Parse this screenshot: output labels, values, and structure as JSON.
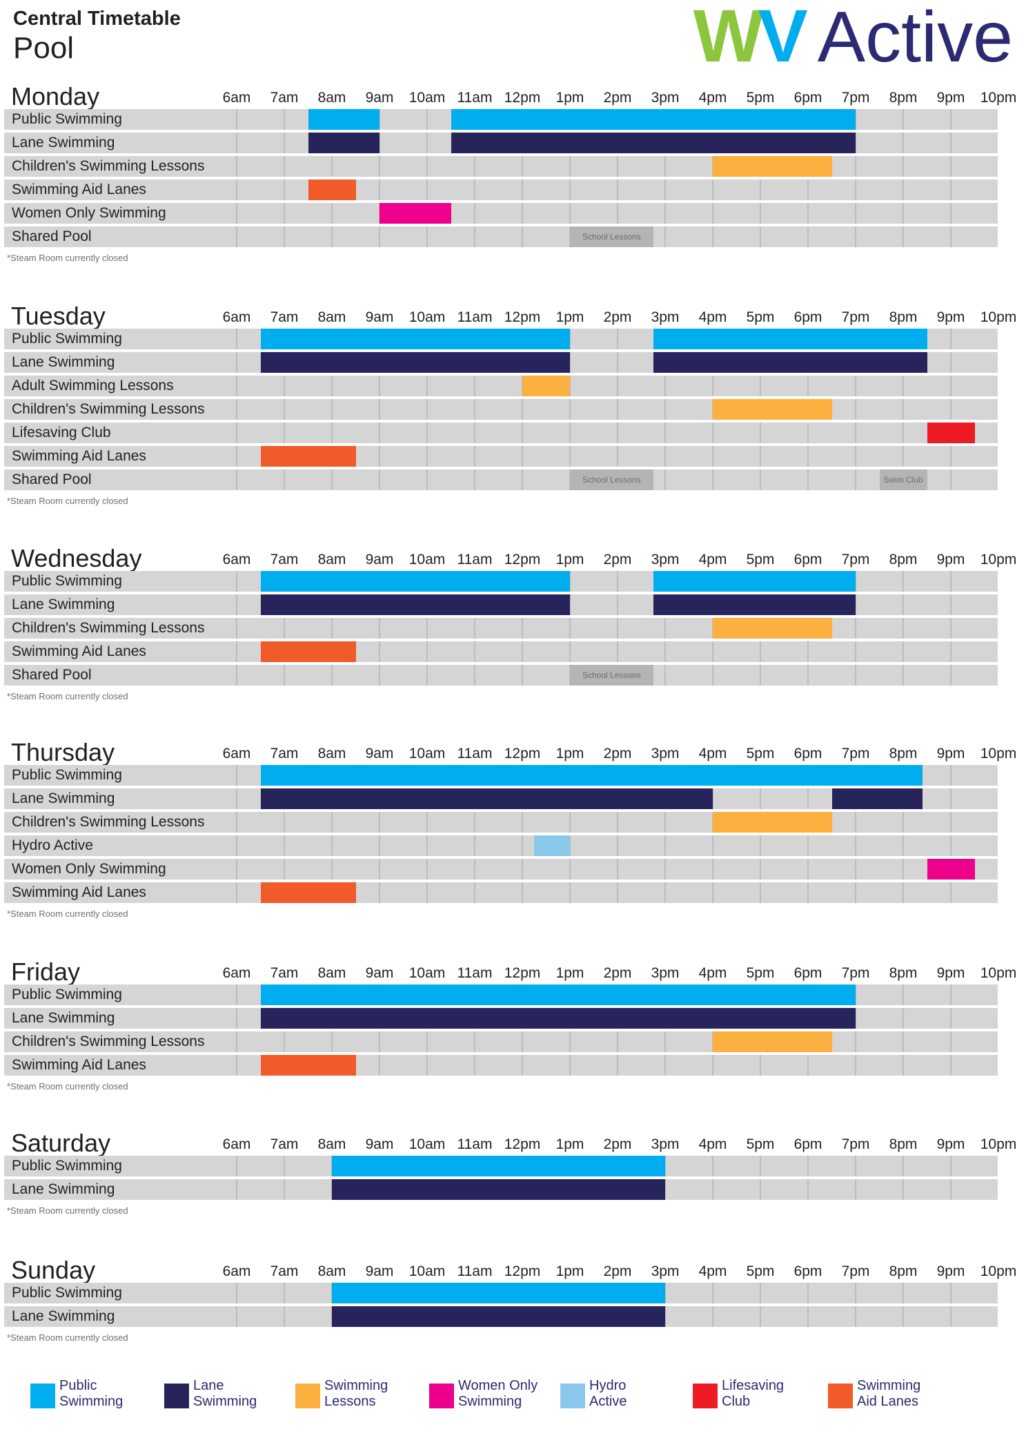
{
  "header": {
    "title": "Central Timetable",
    "subtitle": "Pool"
  },
  "logo": {
    "part_w": "W",
    "part_v": "V",
    "part_active": "Active"
  },
  "hours": [
    "6am",
    "7am",
    "8am",
    "9am",
    "10am",
    "11am",
    "12pm",
    "1pm",
    "2pm",
    "3pm",
    "4pm",
    "5pm",
    "6pm",
    "7pm",
    "8pm",
    "9pm",
    "10pm"
  ],
  "footnote": "*Steam Room currently closed",
  "colors": {
    "public": "#00aeef",
    "lane": "#27245c",
    "lessons": "#fbb040",
    "women": "#ec008c",
    "hydro": "#8ac9ec",
    "lifesaving": "#ed1c24",
    "aid": "#f15a29"
  },
  "days": [
    {
      "name": "Monday",
      "rows": [
        {
          "label": "Public Swimming",
          "bars": [
            {
              "start": 7.5,
              "end": 9,
              "color": "public"
            },
            {
              "start": 10.5,
              "end": 19,
              "color": "public"
            }
          ]
        },
        {
          "label": "Lane Swimming",
          "bars": [
            {
              "start": 7.5,
              "end": 9,
              "color": "lane"
            },
            {
              "start": 10.5,
              "end": 19,
              "color": "lane"
            }
          ]
        },
        {
          "label": "Children's Swimming Lessons",
          "bars": [
            {
              "start": 16,
              "end": 18.5,
              "color": "lessons"
            }
          ]
        },
        {
          "label": "Swimming Aid Lanes",
          "bars": [
            {
              "start": 7.5,
              "end": 8.5,
              "color": "aid"
            }
          ]
        },
        {
          "label": "Women Only Swimming",
          "bars": [
            {
              "start": 9,
              "end": 10.5,
              "color": "women"
            }
          ]
        },
        {
          "label": "Shared Pool",
          "bars": [
            {
              "start": 13,
              "end": 14.75,
              "color": "shared",
              "text": "School Lessons"
            }
          ]
        }
      ]
    },
    {
      "name": "Tuesday",
      "rows": [
        {
          "label": "Public Swimming",
          "bars": [
            {
              "start": 6.5,
              "end": 13,
              "color": "public"
            },
            {
              "start": 14.75,
              "end": 20.5,
              "color": "public"
            }
          ]
        },
        {
          "label": "Lane Swimming",
          "bars": [
            {
              "start": 6.5,
              "end": 13,
              "color": "lane"
            },
            {
              "start": 14.75,
              "end": 20.5,
              "color": "lane"
            }
          ]
        },
        {
          "label": "Adult Swimming Lessons",
          "bars": [
            {
              "start": 12,
              "end": 13,
              "color": "lessons"
            }
          ]
        },
        {
          "label": "Children's Swimming Lessons",
          "bars": [
            {
              "start": 16,
              "end": 18.5,
              "color": "lessons"
            }
          ]
        },
        {
          "label": "Lifesaving Club",
          "bars": [
            {
              "start": 20.5,
              "end": 21.5,
              "color": "lifesaving"
            }
          ]
        },
        {
          "label": "Swimming Aid Lanes",
          "bars": [
            {
              "start": 6.5,
              "end": 8.5,
              "color": "aid"
            }
          ]
        },
        {
          "label": "Shared Pool",
          "bars": [
            {
              "start": 13,
              "end": 14.75,
              "color": "shared",
              "text": "School Lessons"
            },
            {
              "start": 19.5,
              "end": 20.5,
              "color": "shared",
              "text": "Swim Club"
            }
          ]
        }
      ]
    },
    {
      "name": "Wednesday",
      "rows": [
        {
          "label": "Public Swimming",
          "bars": [
            {
              "start": 6.5,
              "end": 13,
              "color": "public"
            },
            {
              "start": 14.75,
              "end": 19,
              "color": "public"
            }
          ]
        },
        {
          "label": "Lane Swimming",
          "bars": [
            {
              "start": 6.5,
              "end": 13,
              "color": "lane"
            },
            {
              "start": 14.75,
              "end": 19,
              "color": "lane"
            }
          ]
        },
        {
          "label": "Children's Swimming Lessons",
          "bars": [
            {
              "start": 16,
              "end": 18.5,
              "color": "lessons"
            }
          ]
        },
        {
          "label": "Swimming Aid Lanes",
          "bars": [
            {
              "start": 6.5,
              "end": 8.5,
              "color": "aid"
            }
          ]
        },
        {
          "label": "Shared Pool",
          "bars": [
            {
              "start": 13,
              "end": 14.75,
              "color": "shared",
              "text": "School Lessons"
            }
          ]
        }
      ]
    },
    {
      "name": "Thursday",
      "rows": [
        {
          "label": "Public Swimming",
          "bars": [
            {
              "start": 6.5,
              "end": 20.4,
              "color": "public"
            }
          ]
        },
        {
          "label": "Lane Swimming",
          "bars": [
            {
              "start": 6.5,
              "end": 16,
              "color": "lane"
            },
            {
              "start": 18.5,
              "end": 20.4,
              "color": "lane"
            }
          ]
        },
        {
          "label": "Children's Swimming Lessons",
          "bars": [
            {
              "start": 16,
              "end": 18.5,
              "color": "lessons"
            }
          ]
        },
        {
          "label": "Hydro Active",
          "bars": [
            {
              "start": 12.25,
              "end": 13,
              "color": "hydro"
            }
          ]
        },
        {
          "label": "Women Only Swimming",
          "bars": [
            {
              "start": 20.5,
              "end": 21.5,
              "color": "women"
            }
          ]
        },
        {
          "label": "Swimming Aid Lanes",
          "bars": [
            {
              "start": 6.5,
              "end": 8.5,
              "color": "aid"
            }
          ]
        }
      ]
    },
    {
      "name": "Friday",
      "rows": [
        {
          "label": "Public Swimming",
          "bars": [
            {
              "start": 6.5,
              "end": 19,
              "color": "public"
            }
          ]
        },
        {
          "label": "Lane Swimming",
          "bars": [
            {
              "start": 6.5,
              "end": 19,
              "color": "lane"
            }
          ]
        },
        {
          "label": "Children's Swimming Lessons",
          "bars": [
            {
              "start": 16,
              "end": 18.5,
              "color": "lessons"
            }
          ]
        },
        {
          "label": "Swimming Aid Lanes",
          "bars": [
            {
              "start": 6.5,
              "end": 8.5,
              "color": "aid"
            }
          ]
        }
      ]
    },
    {
      "name": "Saturday",
      "rows": [
        {
          "label": "Public Swimming",
          "bars": [
            {
              "start": 8,
              "end": 15,
              "color": "public"
            }
          ]
        },
        {
          "label": "Lane Swimming",
          "bars": [
            {
              "start": 8,
              "end": 15,
              "color": "lane"
            }
          ]
        }
      ]
    },
    {
      "name": "Sunday",
      "rows": [
        {
          "label": "Public Swimming",
          "bars": [
            {
              "start": 8,
              "end": 15,
              "color": "public"
            }
          ]
        },
        {
          "label": "Lane Swimming",
          "bars": [
            {
              "start": 8,
              "end": 15,
              "color": "lane"
            }
          ]
        }
      ]
    }
  ],
  "legend": [
    {
      "key": "public",
      "line1": "Public",
      "line2": "Swimming"
    },
    {
      "key": "lane",
      "line1": "Lane",
      "line2": "Swimming"
    },
    {
      "key": "lessons",
      "line1": "Swimming",
      "line2": "Lessons"
    },
    {
      "key": "women",
      "line1": "Women Only",
      "line2": "Swimming"
    },
    {
      "key": "hydro",
      "line1": "Hydro",
      "line2": "Active"
    },
    {
      "key": "lifesaving",
      "line1": "Lifesaving",
      "line2": "Club"
    },
    {
      "key": "aid",
      "line1": "Swimming",
      "line2": "Aid Lanes"
    }
  ]
}
